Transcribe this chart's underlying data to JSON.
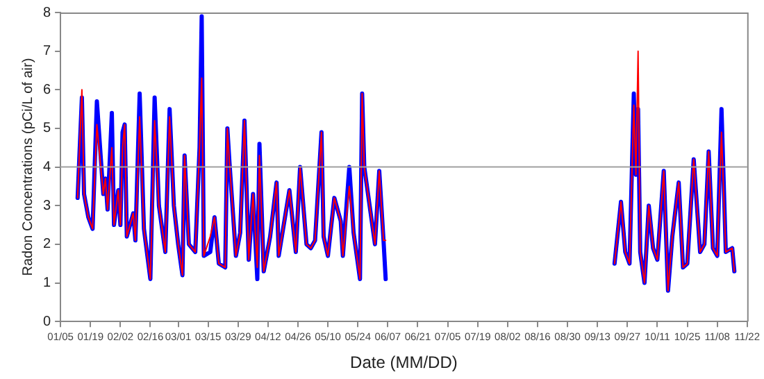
{
  "chart_data": {
    "type": "line",
    "xlabel": "Date (MM/DD)",
    "ylabel": "Radon Concentrations (pCi/L of air)",
    "x": [
      "--01-13",
      "--01-15",
      "--01-16",
      "--01-18",
      "--01-20",
      "--01-22",
      "--01-25",
      "--01-26",
      "--01-27",
      "--01-29",
      "--01-30",
      "--02-01",
      "--02-02",
      "--02-03",
      "--02-04",
      "--02-05",
      "--02-08",
      "--02-09",
      "--02-11",
      "--02-13",
      "--02-16",
      "--02-18",
      "--02-20",
      "--02-23",
      "--02-25",
      "--02-27",
      "--03-01",
      "--03-03",
      "--03-04",
      "--03-06",
      "--03-09",
      "--03-11",
      "--03-12",
      "--03-13",
      "--03-16",
      "--03-18",
      "--03-20",
      "--03-23",
      "--03-24",
      "--03-25",
      "--03-28",
      "--03-30",
      "--04-01",
      "--04-03",
      "--04-05",
      "--04-07",
      "--04-08",
      "--04-10",
      "--04-13",
      "--04-16",
      "--04-17",
      "--04-22",
      "--04-25",
      "--04-27",
      "--04-30",
      "--05-02",
      "--05-04",
      "--05-07",
      "--05-08",
      "--05-10",
      "--05-13",
      "--05-16",
      "--05-17",
      "--05-20",
      "--05-22",
      "--05-25",
      "--05-26",
      "--05-27",
      "--05-30",
      "--06-01",
      "--06-03",
      "--06-05",
      "--06-06",
      "--08-01",
      "--09-21",
      "--09-24",
      "--09-26",
      "--09-28",
      "--09-30",
      "--10-01",
      "--10-02",
      "--10-03",
      "--10-05",
      "--10-07",
      "--10-09",
      "--10-11",
      "--10-14",
      "--10-16",
      "--10-18",
      "--10-21",
      "--10-23",
      "--10-25",
      "--10-28",
      "--10-31",
      "--11-02",
      "--11-04",
      "--11-06",
      "--11-08",
      "--11-10",
      "--11-12",
      "--11-15",
      "--11-16"
    ],
    "series": [
      {
        "color": "#0000ff",
        "values": [
          3.2,
          5.8,
          3.3,
          2.7,
          2.4,
          5.7,
          3.3,
          3.7,
          2.9,
          5.4,
          2.5,
          3.4,
          2.5,
          4.9,
          5.1,
          2.2,
          2.8,
          2.1,
          5.9,
          2.4,
          1.1,
          5.8,
          3.0,
          1.8,
          5.5,
          3.0,
          2.0,
          1.2,
          4.3,
          2.0,
          1.8,
          4.5,
          7.9,
          1.7,
          1.8,
          2.7,
          1.5,
          1.4,
          5.0,
          4.1,
          1.7,
          2.3,
          5.2,
          1.6,
          3.3,
          1.1,
          4.6,
          1.3,
          2.2,
          3.6,
          1.7,
          3.4,
          1.8,
          4.0,
          2.0,
          1.9,
          2.1,
          4.9,
          2.2,
          1.7,
          3.2,
          2.6,
          1.7,
          4.0,
          2.3,
          1.1,
          5.9,
          4.0,
          2.8,
          2.0,
          3.9,
          2.1,
          1.1,
          null,
          1.5,
          3.1,
          1.8,
          1.5,
          5.9,
          3.8,
          5.5,
          1.8,
          1.0,
          3.0,
          1.9,
          1.6,
          3.9,
          0.8,
          2.2,
          3.6,
          1.4,
          1.5,
          4.2,
          1.8,
          2.0,
          4.4,
          1.9,
          1.7,
          5.5,
          1.8,
          1.9,
          1.3
        ]
      },
      {
        "color": "#ff0000",
        "values": [
          3.2,
          6.0,
          3.3,
          2.7,
          2.4,
          5.1,
          3.3,
          3.7,
          2.9,
          4.5,
          2.5,
          3.4,
          2.5,
          4.5,
          5.1,
          2.2,
          2.8,
          2.1,
          5.3,
          2.4,
          1.1,
          5.2,
          3.0,
          1.8,
          5.3,
          3.0,
          2.0,
          1.2,
          4.3,
          2.0,
          1.8,
          4.5,
          6.3,
          1.7,
          2.2,
          2.7,
          1.5,
          1.4,
          5.0,
          4.1,
          1.7,
          2.3,
          5.2,
          1.6,
          3.3,
          1.4,
          4.3,
          1.3,
          2.2,
          3.6,
          1.7,
          3.4,
          1.8,
          4.0,
          2.0,
          1.9,
          2.1,
          4.9,
          2.2,
          1.7,
          3.2,
          2.6,
          1.7,
          3.5,
          2.3,
          1.1,
          5.9,
          4.0,
          2.8,
          2.0,
          3.9,
          2.1,
          2.1,
          null,
          1.5,
          3.1,
          1.8,
          1.5,
          5.6,
          3.8,
          7.0,
          1.8,
          1.0,
          3.0,
          1.9,
          1.6,
          3.9,
          0.8,
          2.2,
          3.6,
          1.4,
          1.5,
          4.2,
          1.8,
          2.0,
          4.4,
          1.9,
          1.7,
          4.9,
          1.8,
          1.9,
          1.3
        ]
      }
    ],
    "xlim": [
      "--01-05",
      "--11-22"
    ],
    "xticks": [
      {
        "value": "--01-05",
        "label": "01/05"
      },
      {
        "value": "--01-19",
        "label": "01/19"
      },
      {
        "value": "--02-02",
        "label": "02/02"
      },
      {
        "value": "--02-16",
        "label": "02/16"
      },
      {
        "value": "--03-01",
        "label": "03/01"
      },
      {
        "value": "--03-15",
        "label": "03/15"
      },
      {
        "value": "--03-29",
        "label": "03/29"
      },
      {
        "value": "--04-12",
        "label": "04/12"
      },
      {
        "value": "--04-26",
        "label": "04/26"
      },
      {
        "value": "--05-10",
        "label": "05/10"
      },
      {
        "value": "--05-24",
        "label": "05/24"
      },
      {
        "value": "--06-07",
        "label": "06/07"
      },
      {
        "value": "--06-21",
        "label": "06/21"
      },
      {
        "value": "--07-05",
        "label": "07/05"
      },
      {
        "value": "--07-19",
        "label": "07/19"
      },
      {
        "value": "--08-02",
        "label": "08/02"
      },
      {
        "value": "--08-16",
        "label": "08/16"
      },
      {
        "value": "--08-30",
        "label": "08/30"
      },
      {
        "value": "--09-13",
        "label": "09/13"
      },
      {
        "value": "--09-27",
        "label": "09/27"
      },
      {
        "value": "--10-11",
        "label": "10/11"
      },
      {
        "value": "--10-25",
        "label": "10/25"
      },
      {
        "value": "--11-08",
        "label": "11/08"
      },
      {
        "value": "--11-22",
        "label": "11/22"
      }
    ],
    "ylim": [
      0,
      8
    ],
    "yticks": [
      0,
      1,
      2,
      3,
      4,
      5,
      6,
      7,
      8
    ],
    "ref_lines": [
      {
        "axis": "y",
        "value": 4,
        "color": "#a0a0a0"
      }
    ],
    "grid": false,
    "legend": false,
    "marker": "none",
    "line_style": "solid"
  }
}
